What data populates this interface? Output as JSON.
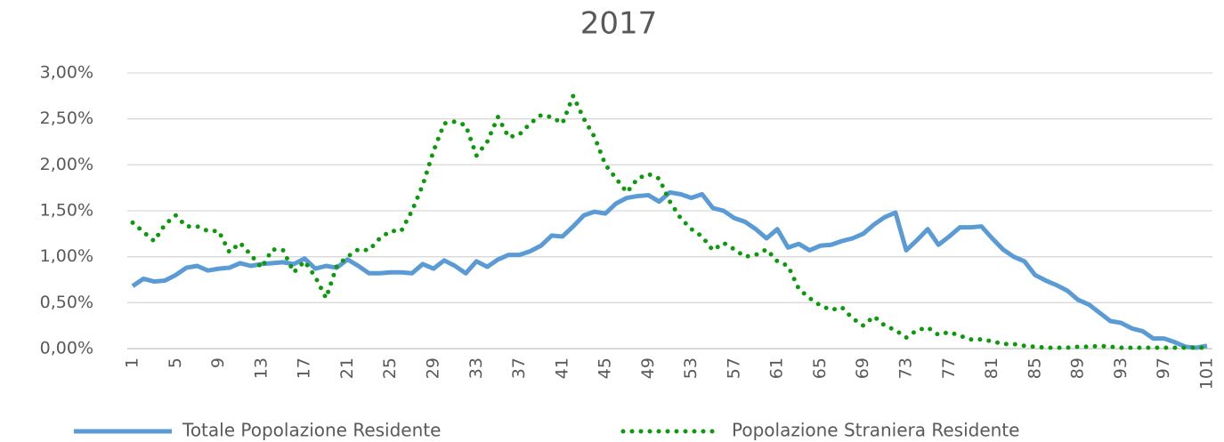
{
  "chart_data": {
    "type": "line",
    "title": "2017",
    "categories": [
      "1",
      null,
      null,
      null,
      "5",
      null,
      null,
      null,
      "9",
      null,
      null,
      null,
      "13",
      null,
      null,
      null,
      "17",
      null,
      null,
      null,
      "21",
      null,
      null,
      null,
      "25",
      null,
      null,
      null,
      "29",
      null,
      null,
      null,
      "33",
      null,
      null,
      null,
      "37",
      null,
      null,
      null,
      "41",
      null,
      null,
      null,
      "45",
      null,
      null,
      null,
      "49",
      null,
      null,
      null,
      "53",
      null,
      null,
      null,
      "57",
      null,
      null,
      null,
      "61",
      null,
      null,
      null,
      "65",
      null,
      null,
      null,
      "69",
      null,
      null,
      null,
      "73",
      null,
      null,
      null,
      "77",
      null,
      null,
      null,
      "81",
      null,
      null,
      null,
      "85",
      null,
      null,
      null,
      "89",
      null,
      null,
      null,
      "93",
      null,
      null,
      null,
      "97",
      null,
      null,
      null,
      "101"
    ],
    "series": [
      {
        "name": "Totale Popolazione Residente",
        "color": "#5b9bd5",
        "style": "solid",
        "values": [
          0.68,
          0.76,
          0.73,
          0.74,
          0.8,
          0.88,
          0.9,
          0.85,
          0.87,
          0.88,
          0.93,
          0.9,
          0.92,
          0.93,
          0.94,
          0.92,
          0.98,
          0.87,
          0.9,
          0.88,
          0.97,
          0.9,
          0.82,
          0.82,
          0.83,
          0.83,
          0.82,
          0.92,
          0.87,
          0.96,
          0.9,
          0.82,
          0.95,
          0.89,
          0.97,
          1.02,
          1.02,
          1.06,
          1.12,
          1.23,
          1.22,
          1.33,
          1.45,
          1.49,
          1.47,
          1.58,
          1.64,
          1.66,
          1.67,
          1.6,
          1.7,
          1.68,
          1.64,
          1.68,
          1.53,
          1.5,
          1.42,
          1.38,
          1.3,
          1.2,
          1.3,
          1.1,
          1.14,
          1.07,
          1.12,
          1.13,
          1.17,
          1.2,
          1.25,
          1.35,
          1.43,
          1.48,
          1.07,
          1.18,
          1.3,
          1.13,
          1.22,
          1.32,
          1.32,
          1.33,
          1.2,
          1.08,
          1.0,
          0.95,
          0.8,
          0.74,
          0.69,
          0.63,
          0.53,
          0.48,
          0.39,
          0.3,
          0.28,
          0.22,
          0.19,
          0.11,
          0.11,
          0.07,
          0.02,
          0.01,
          0.03
        ]
      },
      {
        "name": "Popolazione Straniera Residente",
        "color": "#0a9a0a",
        "style": "dotted",
        "values": [
          1.37,
          1.27,
          1.17,
          1.35,
          1.45,
          1.33,
          1.33,
          1.28,
          1.28,
          1.05,
          1.15,
          1.02,
          0.88,
          1.08,
          1.07,
          0.83,
          0.95,
          0.78,
          0.55,
          0.9,
          1.0,
          1.08,
          1.07,
          1.2,
          1.28,
          1.28,
          1.5,
          1.78,
          2.15,
          2.45,
          2.47,
          2.43,
          2.1,
          2.25,
          2.52,
          2.3,
          2.33,
          2.45,
          2.54,
          2.52,
          2.45,
          2.75,
          2.5,
          2.3,
          2.0,
          1.85,
          1.7,
          1.85,
          1.9,
          1.85,
          1.6,
          1.42,
          1.3,
          1.22,
          1.07,
          1.15,
          1.08,
          1.0,
          1.02,
          1.08,
          0.95,
          0.9,
          0.65,
          0.55,
          0.47,
          0.42,
          0.45,
          0.33,
          0.25,
          0.35,
          0.25,
          0.2,
          0.12,
          0.2,
          0.23,
          0.15,
          0.18,
          0.14,
          0.1,
          0.1,
          0.08,
          0.05,
          0.05,
          0.03,
          0.02,
          0.01,
          0.01,
          0.01,
          0.02,
          0.02,
          0.03,
          0.02,
          0.01,
          0.01,
          0.01,
          0.01,
          0.01,
          0.01,
          0.01,
          0.01,
          0.01
        ]
      }
    ],
    "ylim": [
      0,
      3
    ],
    "yticks": [
      {
        "value": 0,
        "label": "0,00%"
      },
      {
        "value": 0.5,
        "label": "0,50%"
      },
      {
        "value": 1,
        "label": "1,00%"
      },
      {
        "value": 1.5,
        "label": "1,50%"
      },
      {
        "value": 2,
        "label": "2,00%"
      },
      {
        "value": 2.5,
        "label": "2,50%"
      },
      {
        "value": 3,
        "label": "3,00%"
      }
    ],
    "grid": true,
    "legend": "bottom"
  }
}
